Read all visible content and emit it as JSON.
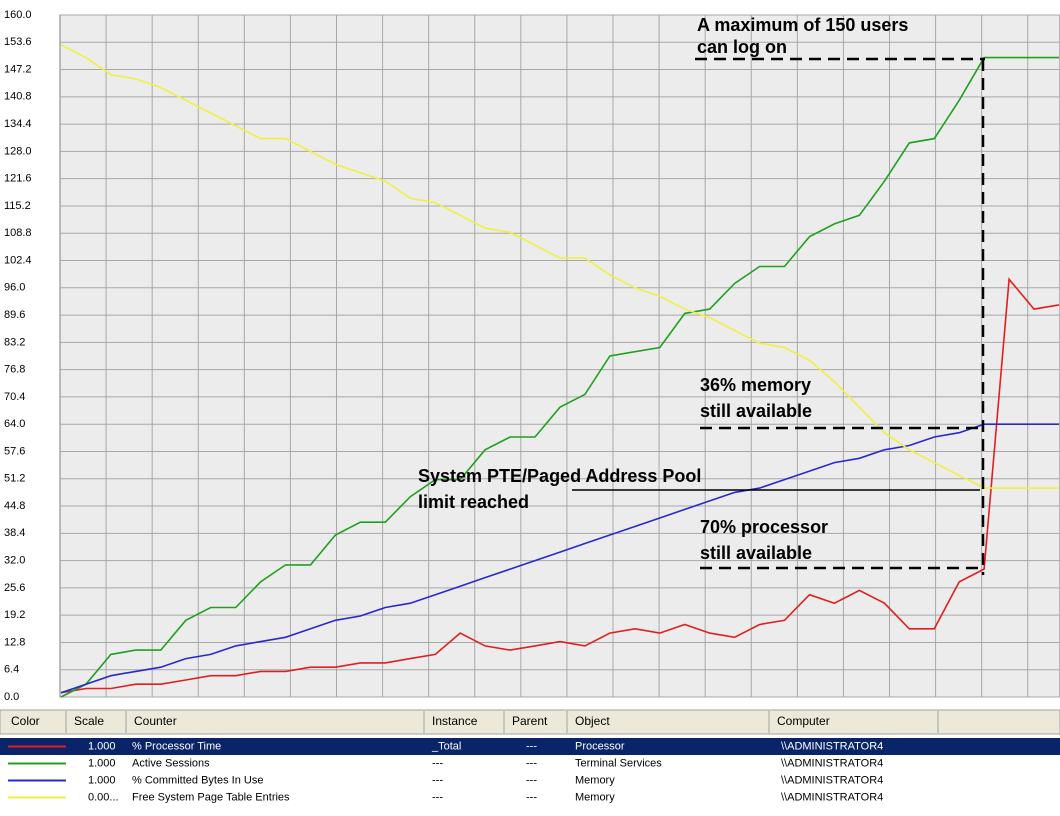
{
  "chart_data": {
    "type": "line",
    "ylim": [
      0,
      160
    ],
    "yticks": [
      {
        "value": 0,
        "label": "0.0"
      },
      {
        "value": 6.4,
        "label": "6.4"
      },
      {
        "value": 12.8,
        "label": "12.8"
      },
      {
        "value": 19.2,
        "label": "19.2"
      },
      {
        "value": 25.6,
        "label": "25.6"
      },
      {
        "value": 32,
        "label": "32.0"
      },
      {
        "value": 38.4,
        "label": "38.4"
      },
      {
        "value": 44.8,
        "label": "44.8"
      },
      {
        "value": 51.2,
        "label": "51.2"
      },
      {
        "value": 57.6,
        "label": "57.6"
      },
      {
        "value": 64,
        "label": "64.0"
      },
      {
        "value": 70.4,
        "label": "70.4"
      },
      {
        "value": 76.8,
        "label": "76.8"
      },
      {
        "value": 83.2,
        "label": "83.2"
      },
      {
        "value": 89.6,
        "label": "89.6"
      },
      {
        "value": 96,
        "label": "96.0"
      },
      {
        "value": 102.4,
        "label": "102.4"
      },
      {
        "value": 108.8,
        "label": "108.8"
      },
      {
        "value": 115.2,
        "label": "115.2"
      },
      {
        "value": 121.6,
        "label": "121.6"
      },
      {
        "value": 128,
        "label": "128.0"
      },
      {
        "value": 134.4,
        "label": "134.4"
      },
      {
        "value": 140.8,
        "label": "140.8"
      },
      {
        "value": 147.2,
        "label": "147.2"
      },
      {
        "value": 153.6,
        "label": "153.6"
      },
      {
        "value": 160,
        "label": "160.0"
      }
    ],
    "grid": true,
    "series": [
      {
        "name": "% Processor Time",
        "color": "#e02020",
        "values": [
          1,
          2,
          2,
          3,
          3,
          4,
          5,
          5,
          6,
          6,
          7,
          7,
          8,
          8,
          9,
          10,
          15,
          12,
          11,
          12,
          13,
          12,
          15,
          16,
          15,
          17,
          15,
          14,
          17,
          18,
          24,
          22,
          25,
          22,
          16,
          16,
          27,
          30,
          98,
          91,
          92
        ]
      },
      {
        "name": "Active Sessions",
        "color": "#20a020",
        "values": [
          0,
          3,
          10,
          11,
          11,
          18,
          21,
          21,
          27,
          31,
          31,
          38,
          41,
          41,
          47,
          51,
          51,
          58,
          61,
          61,
          68,
          71,
          80,
          81,
          82,
          90,
          91,
          97,
          101,
          101,
          108,
          111,
          113,
          121,
          130,
          131,
          140,
          150,
          150,
          150,
          150
        ]
      },
      {
        "name": "% Committed Bytes In Use",
        "color": "#2828d0",
        "values": [
          1,
          3,
          5,
          6,
          7,
          9,
          10,
          12,
          13,
          14,
          16,
          18,
          19,
          21,
          22,
          24,
          26,
          28,
          30,
          32,
          34,
          36,
          38,
          40,
          42,
          44,
          46,
          48,
          49,
          51,
          53,
          55,
          56,
          58,
          59,
          61,
          62,
          64,
          64,
          64,
          64
        ]
      },
      {
        "name": "Free System Page Table Entries",
        "color": "#f0f040",
        "values": [
          153,
          150,
          146,
          145,
          143,
          140,
          137,
          134,
          131,
          131,
          128,
          125,
          123,
          121,
          117,
          116,
          113,
          110,
          109,
          106,
          103,
          103,
          99,
          96,
          94,
          91,
          89,
          86,
          83,
          82,
          79,
          74,
          68,
          62,
          58,
          55,
          52,
          49,
          49,
          49,
          49
        ]
      }
    ],
    "annotations": [
      [
        "A maximum of 150 users",
        "can log on"
      ],
      [
        "36% memory",
        "still available"
      ],
      [
        "System PTE/Paged Address Pool",
        "limit reached"
      ],
      [
        "70% processor",
        "still available"
      ]
    ]
  },
  "table": {
    "headers": [
      "Color",
      "Scale",
      "Counter",
      "Instance",
      "Parent",
      "Object",
      "Computer"
    ],
    "rows": [
      {
        "scale": "1.000",
        "instance": "_Total",
        "parent": "---",
        "object": "Processor",
        "computer": "\\\\ADMINISTRATOR4"
      },
      {
        "scale": "1.000",
        "instance": "---",
        "parent": "---",
        "object": "Terminal Services",
        "computer": "\\\\ADMINISTRATOR4"
      },
      {
        "scale": "1.000",
        "instance": "---",
        "parent": "---",
        "object": "Memory",
        "computer": "\\\\ADMINISTRATOR4"
      },
      {
        "scale": "0.00...",
        "instance": "---",
        "parent": "---",
        "object": "Memory",
        "computer": "\\\\ADMINISTRATOR4"
      }
    ]
  }
}
